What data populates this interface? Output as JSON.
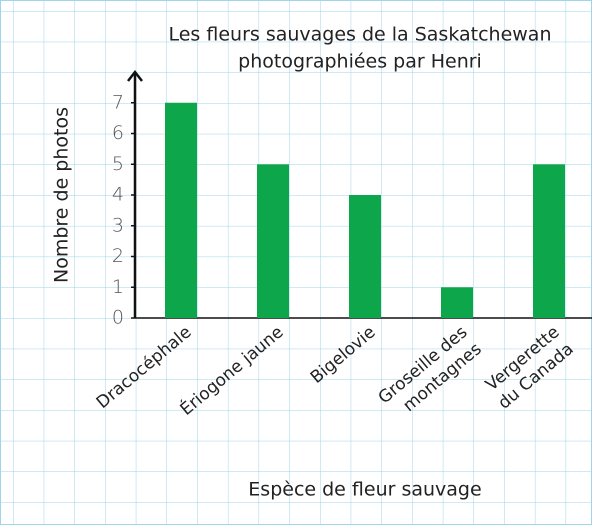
{
  "chart_data": {
    "type": "bar",
    "title": [
      "Les fleurs sauvages de la Saskatchewan",
      "photographiées par Henri"
    ],
    "x_label": "Espèce de fleur sauvage",
    "y_label": "Nombre de photos",
    "categories": [
      "Dracocéphale",
      "Ériogone jaune",
      "Bigelovie",
      "Groseille des\nmontagnes",
      "Vergerette\ndu Canada"
    ],
    "values": [
      7,
      5,
      4,
      1,
      5
    ],
    "color": "#0ea64b",
    "ylim": [
      0,
      8
    ],
    "yticks": [
      0,
      1,
      2,
      3,
      4,
      5,
      6,
      7
    ],
    "grid": false
  }
}
